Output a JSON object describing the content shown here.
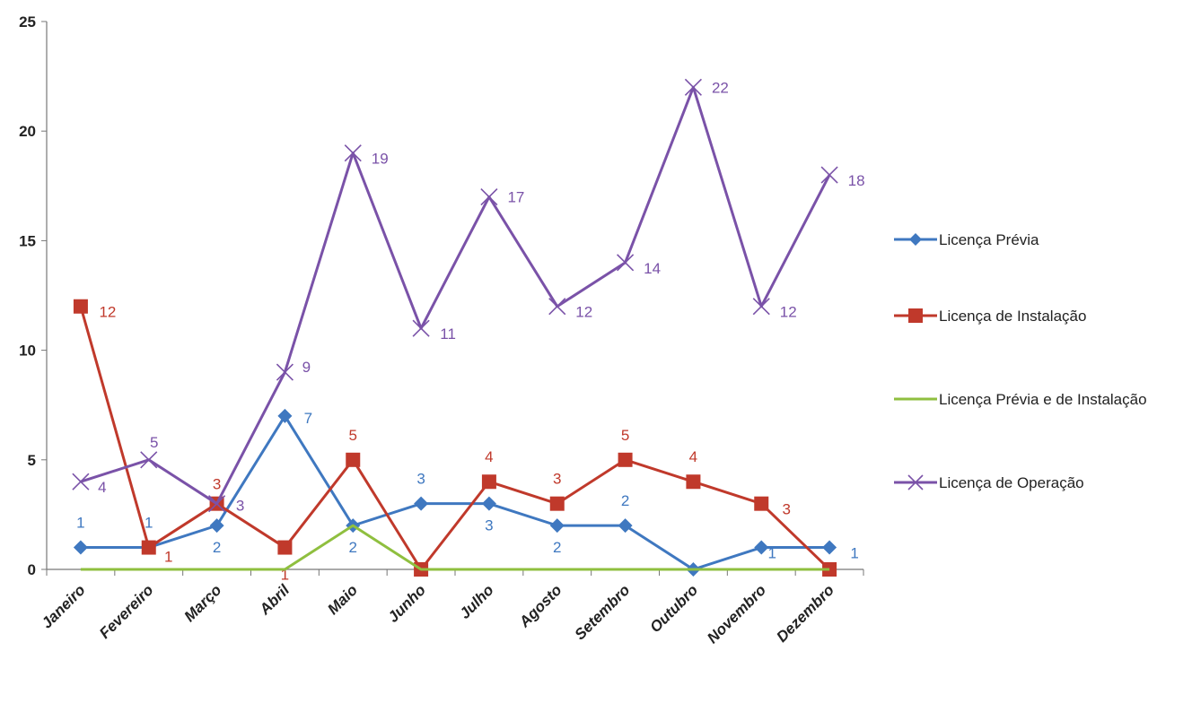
{
  "chart_data": {
    "type": "line",
    "categories": [
      "Janeiro",
      "Fevereiro",
      "Março",
      "Abril",
      "Maio",
      "Junho",
      "Julho",
      "Agosto",
      "Setembro",
      "Outubro",
      "Novembro",
      "Dezembro"
    ],
    "ylim": [
      0,
      25
    ],
    "yticks": [
      0,
      5,
      10,
      15,
      20,
      25
    ],
    "grid": false,
    "legend_position": "right",
    "series": [
      {
        "name": "Licença Prévia",
        "color": "#3f78c0",
        "marker": "diamond",
        "values": [
          1,
          1,
          2,
          7,
          2,
          3,
          3,
          2,
          2,
          0,
          1,
          1
        ],
        "labels": [
          "1",
          "1",
          "2",
          "7",
          "2",
          "3",
          "3",
          "2",
          "2",
          "",
          "1",
          "1"
        ]
      },
      {
        "name": "Licença de Instalação",
        "color": "#c0392b",
        "marker": "square",
        "values": [
          12,
          1,
          3,
          1,
          5,
          0,
          4,
          3,
          5,
          4,
          3,
          0
        ],
        "labels": [
          "12",
          "1",
          "3",
          "1",
          "5",
          "",
          "4",
          "3",
          "5",
          "4",
          "3",
          ""
        ]
      },
      {
        "name": "Licença Prévia e de Instalação",
        "color": "#8fbf3f",
        "marker": "none",
        "values": [
          0,
          0,
          0,
          0,
          2,
          0,
          0,
          0,
          0,
          0,
          0,
          0
        ],
        "labels": [
          "",
          "",
          "",
          "",
          "",
          "",
          "",
          "",
          "",
          "",
          "",
          ""
        ]
      },
      {
        "name": "Licença de Operação",
        "color": "#7a52a8",
        "marker": "x",
        "values": [
          4,
          5,
          3,
          9,
          19,
          11,
          17,
          12,
          14,
          22,
          12,
          18
        ],
        "labels": [
          "4",
          "5",
          "3",
          "9",
          "19",
          "11",
          "17",
          "12",
          "14",
          "22",
          "12",
          "18"
        ]
      }
    ]
  }
}
